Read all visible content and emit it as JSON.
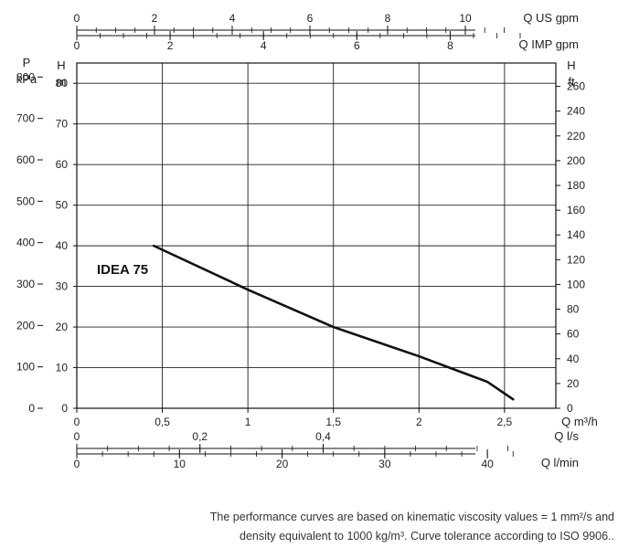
{
  "chart_data": {
    "type": "line",
    "title": "",
    "series": [
      {
        "name": "IDEA 75",
        "x": [
          0.45,
          1.0,
          1.5,
          2.0,
          2.4,
          2.55
        ],
        "y": [
          40,
          29.2,
          20,
          12.8,
          6.5,
          2.2
        ]
      }
    ],
    "xlabel": "Q m³/h",
    "xlim": [
      0,
      2.8
    ],
    "xticks": [
      "0",
      "0,5",
      "1",
      "1,5",
      "2",
      "2,5"
    ],
    "ylabel_left_outer": [
      "P",
      "kPa"
    ],
    "ylabel_left_inner": [
      "H",
      "m"
    ],
    "ylabel_right": [
      "H",
      "ft"
    ],
    "ylim": [
      0,
      85
    ],
    "yticks_m": [
      "0",
      "10",
      "20",
      "30",
      "40",
      "50",
      "60",
      "70",
      "80"
    ],
    "yticks_kpa": [
      "0",
      "100",
      "200",
      "300",
      "400",
      "500",
      "600",
      "700",
      "800"
    ],
    "yticks_ft": [
      "0",
      "20",
      "40",
      "60",
      "80",
      "100",
      "120",
      "140",
      "160",
      "180",
      "200",
      "220",
      "240",
      "260"
    ],
    "secondary_axes": {
      "us_gpm": {
        "label": "Q US gpm",
        "ticks": [
          "0",
          "2",
          "4",
          "6",
          "8",
          "10"
        ]
      },
      "imp_gpm": {
        "label": "Q IMP gpm",
        "ticks": [
          "0",
          "2",
          "4",
          "6",
          "8"
        ]
      },
      "l_s": {
        "label": "Q l/s",
        "ticks": [
          "0",
          "0,2",
          "0,4"
        ]
      },
      "l_min": {
        "label": "Q l/min",
        "ticks": [
          "0",
          "10",
          "20",
          "30",
          "40"
        ]
      }
    },
    "grid": true,
    "legend": "none"
  },
  "note": {
    "line1": "The performance curves are based on kinematic viscosity values = 1 mm²/s and",
    "line2": "density equivalent to 1000 kg/m³. Curve tolerance according to ISO 9906.."
  }
}
